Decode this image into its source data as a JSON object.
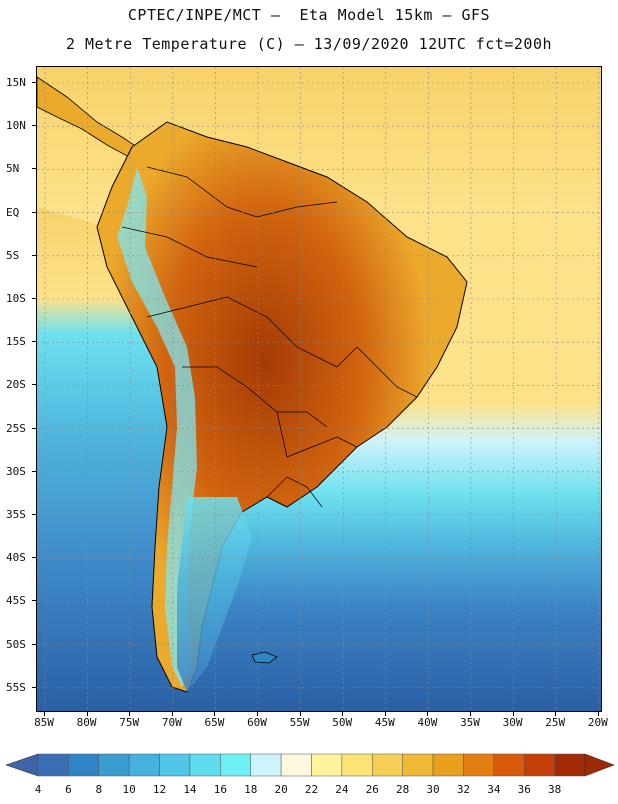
{
  "title_line1": "CPTEC/INPE/MCT –  Eta Model 15km – GFS",
  "title_line2": "2 Metre Temperature (C) – 13/09/2020 12UTC fct=200h",
  "lat_labels": [
    "15N",
    "10N",
    "5N",
    "EQ",
    "5S",
    "10S",
    "15S",
    "20S",
    "25S",
    "30S",
    "35S",
    "40S",
    "45S",
    "50S",
    "55S"
  ],
  "lon_labels": [
    "85W",
    "80W",
    "75W",
    "70W",
    "65W",
    "60W",
    "55W",
    "50W",
    "45W",
    "40W",
    "35W",
    "30W",
    "25W",
    "20W"
  ],
  "colorbar": {
    "labels": [
      "4",
      "6",
      "8",
      "10",
      "12",
      "14",
      "16",
      "18",
      "20",
      "22",
      "24",
      "26",
      "28",
      "30",
      "32",
      "34",
      "36",
      "38"
    ],
    "colors": [
      "#3a6fb5",
      "#2f84c6",
      "#3a9ccf",
      "#45b1dc",
      "#52c6e6",
      "#5fdcee",
      "#6ef0f5",
      "#cdf3fb",
      "#fff8df",
      "#fff39e",
      "#fbe376",
      "#f5cf55",
      "#efb935",
      "#e9a01d",
      "#e37e12",
      "#da5a0c",
      "#c63e08",
      "#a32a05"
    ],
    "under_color": "#3f63a8",
    "over_color": "#9b2a05"
  },
  "map_colors": {
    "ocean_cold": "#2a5fa3",
    "ocean_cool": "#3b82c4",
    "ocean_mid": "#4fb6de",
    "ocean_warm": "#6ee1ef",
    "ocean_pale": "#cdf3fb",
    "ocean_yellow": "#fde28a",
    "ocean_tropical": "#f7d26a",
    "land_hot": "#d2650f",
    "land_very_hot": "#a53a05",
    "land_warm": "#ecaa2c",
    "andes": "#7fe6f3"
  }
}
